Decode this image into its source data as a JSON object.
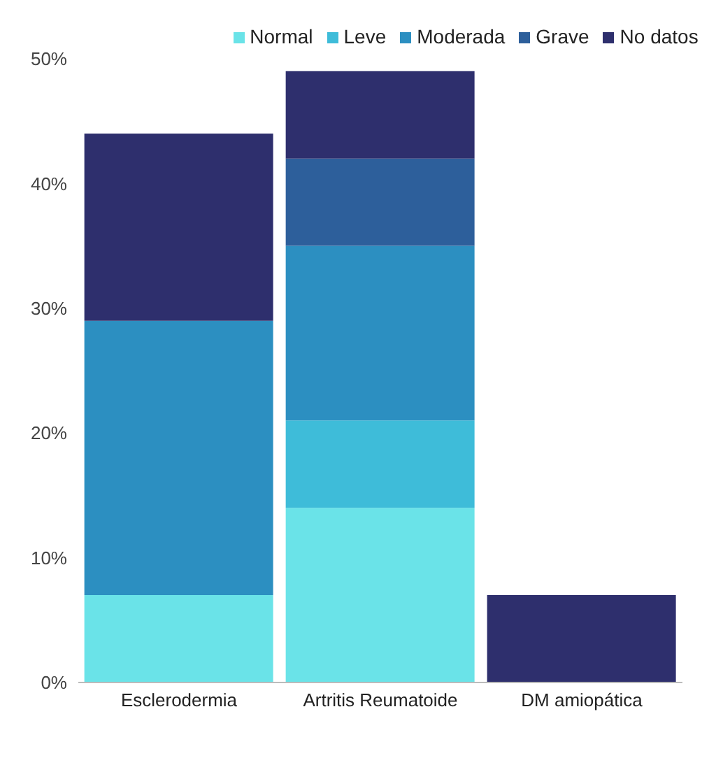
{
  "chart_data": {
    "type": "bar",
    "stacked": true,
    "categories": [
      "Esclerodermia",
      "Artritis Reumatoide",
      "DM amiopática"
    ],
    "series": [
      {
        "name": "Normal",
        "color": "#6ae3e8",
        "values": [
          7,
          14,
          0
        ]
      },
      {
        "name": "Leve",
        "color": "#3ebcd9",
        "values": [
          0,
          7,
          0
        ]
      },
      {
        "name": "Moderada",
        "color": "#2c8fc1",
        "values": [
          22,
          14,
          0
        ]
      },
      {
        "name": "Grave",
        "color": "#2d5f9b",
        "values": [
          0,
          7,
          0
        ]
      },
      {
        "name": "No datos",
        "color": "#2e2f6d",
        "values": [
          15,
          7,
          7
        ]
      }
    ],
    "ylim": [
      0,
      50
    ],
    "yticks": [
      {
        "value": 0,
        "label": "0%"
      },
      {
        "value": 10,
        "label": "10%"
      },
      {
        "value": 20,
        "label": "20%"
      },
      {
        "value": 30,
        "label": "30%"
      },
      {
        "value": 40,
        "label": "40%"
      },
      {
        "value": 50,
        "label": "50%"
      }
    ],
    "grid": false,
    "legend": "top"
  }
}
